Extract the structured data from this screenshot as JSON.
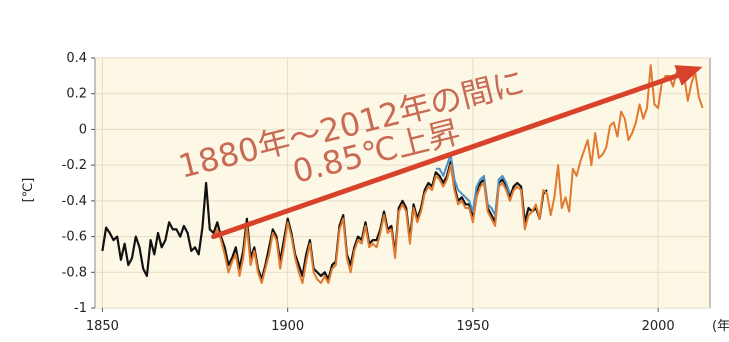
{
  "chart_data": {
    "type": "line",
    "title": "",
    "xlabel": "(年)",
    "ylabel": "[℃]",
    "xlim": [
      1848,
      2014
    ],
    "ylim": [
      -1.0,
      0.4
    ],
    "xticks": [
      "1850",
      "1900",
      "1950",
      "2000"
    ],
    "yticks": [
      "0.4",
      "0.2",
      "0",
      "-0.2",
      "-0.4",
      "-0.6",
      "-0.8",
      "-1"
    ],
    "grid": true,
    "legend": "none",
    "annotation": {
      "line1": "1880年～2012年の間に",
      "line2": "0.85℃上昇",
      "arrow_from": [
        1880,
        -0.6
      ],
      "arrow_to": [
        2012,
        0.35
      ]
    },
    "series": [
      {
        "color": "#111111",
        "x": [
          1850,
          1851,
          1852,
          1853,
          1854,
          1855,
          1856,
          1857,
          1858,
          1859,
          1860,
          1861,
          1862,
          1863,
          1864,
          1865,
          1866,
          1867,
          1868,
          1869,
          1870,
          1871,
          1872,
          1873,
          1874,
          1875,
          1876,
          1877,
          1878,
          1879,
          1880,
          1881,
          1882,
          1883,
          1884,
          1885,
          1886,
          1887,
          1888,
          1889,
          1890,
          1891,
          1892,
          1893,
          1894,
          1895,
          1896,
          1897,
          1898,
          1899,
          1900,
          1901,
          1902,
          1903,
          1904,
          1905,
          1906,
          1907,
          1908,
          1909,
          1910,
          1911,
          1912,
          1913,
          1914,
          1915,
          1916,
          1917,
          1918,
          1919,
          1920,
          1921,
          1922,
          1923,
          1924,
          1925,
          1926,
          1927,
          1928,
          1929,
          1930,
          1931,
          1932,
          1933,
          1934,
          1935,
          1936,
          1937,
          1938,
          1939,
          1940,
          1941,
          1942,
          1943,
          1944,
          1945,
          1946,
          1947,
          1948,
          1949,
          1950,
          1951,
          1952,
          1953,
          1954,
          1955,
          1956,
          1957,
          1958,
          1959,
          1960,
          1961,
          1962,
          1963,
          1964,
          1965,
          1966,
          1967,
          1968,
          1969,
          1970
        ],
        "y": [
          -0.68,
          -0.55,
          -0.58,
          -0.62,
          -0.6,
          -0.73,
          -0.64,
          -0.76,
          -0.72,
          -0.6,
          -0.66,
          -0.78,
          -0.82,
          -0.62,
          -0.7,
          -0.58,
          -0.66,
          -0.62,
          -0.52,
          -0.56,
          -0.56,
          -0.6,
          -0.54,
          -0.58,
          -0.68,
          -0.66,
          -0.7,
          -0.55,
          -0.3,
          -0.56,
          -0.58,
          -0.52,
          -0.6,
          -0.66,
          -0.76,
          -0.72,
          -0.66,
          -0.78,
          -0.68,
          -0.5,
          -0.72,
          -0.66,
          -0.78,
          -0.84,
          -0.76,
          -0.66,
          -0.56,
          -0.6,
          -0.74,
          -0.62,
          -0.5,
          -0.58,
          -0.7,
          -0.76,
          -0.82,
          -0.7,
          -0.62,
          -0.78,
          -0.8,
          -0.82,
          -0.8,
          -0.84,
          -0.76,
          -0.74,
          -0.54,
          -0.48,
          -0.7,
          -0.76,
          -0.66,
          -0.6,
          -0.62,
          -0.52,
          -0.64,
          -0.62,
          -0.62,
          -0.56,
          -0.46,
          -0.56,
          -0.54,
          -0.7,
          -0.44,
          -0.4,
          -0.44,
          -0.62,
          -0.42,
          -0.5,
          -0.44,
          -0.34,
          -0.3,
          -0.32,
          -0.24,
          -0.26,
          -0.3,
          -0.26,
          -0.18,
          -0.32,
          -0.4,
          -0.38,
          -0.42,
          -0.42,
          -0.5,
          -0.36,
          -0.3,
          -0.28,
          -0.44,
          -0.48,
          -0.52,
          -0.3,
          -0.28,
          -0.32,
          -0.38,
          -0.32,
          -0.3,
          -0.32,
          -0.52,
          -0.44,
          -0.46,
          -0.44,
          -0.5,
          -0.36,
          -0.34
        ]
      },
      {
        "color": "#4a90c8",
        "x": [
          1940,
          1941,
          1942,
          1943,
          1944,
          1945,
          1946,
          1947,
          1948,
          1949,
          1950,
          1951,
          1952,
          1953,
          1954,
          1955,
          1956,
          1957,
          1958,
          1959,
          1960
        ],
        "y": [
          -0.22,
          -0.22,
          -0.26,
          -0.2,
          -0.14,
          -0.28,
          -0.34,
          -0.36,
          -0.38,
          -0.4,
          -0.46,
          -0.32,
          -0.28,
          -0.26,
          -0.42,
          -0.44,
          -0.48,
          -0.28,
          -0.26,
          -0.3,
          -0.36
        ]
      },
      {
        "color": "#e07a30",
        "x": [
          1880,
          1881,
          1882,
          1883,
          1884,
          1885,
          1886,
          1887,
          1888,
          1889,
          1890,
          1891,
          1892,
          1893,
          1894,
          1895,
          1896,
          1897,
          1898,
          1899,
          1900,
          1901,
          1902,
          1903,
          1904,
          1905,
          1906,
          1907,
          1908,
          1909,
          1910,
          1911,
          1912,
          1913,
          1914,
          1915,
          1916,
          1917,
          1918,
          1919,
          1920,
          1921,
          1922,
          1923,
          1924,
          1925,
          1926,
          1927,
          1928,
          1929,
          1930,
          1931,
          1932,
          1933,
          1934,
          1935,
          1936,
          1937,
          1938,
          1939,
          1940,
          1941,
          1942,
          1943,
          1944,
          1945,
          1946,
          1947,
          1948,
          1949,
          1950,
          1951,
          1952,
          1953,
          1954,
          1955,
          1956,
          1957,
          1958,
          1959,
          1960,
          1961,
          1962,
          1963,
          1964,
          1965,
          1966,
          1967,
          1968,
          1969,
          1970,
          1971,
          1972,
          1973,
          1974,
          1975,
          1976,
          1977,
          1978,
          1979,
          1980,
          1981,
          1982,
          1983,
          1984,
          1985,
          1986,
          1987,
          1988,
          1989,
          1990,
          1991,
          1992,
          1993,
          1994,
          1995,
          1996,
          1997,
          1998,
          1999,
          2000,
          2001,
          2002,
          2003,
          2004,
          2005,
          2006,
          2007,
          2008,
          2009,
          2010,
          2011,
          2012
        ],
        "y": [
          -0.6,
          -0.56,
          -0.62,
          -0.7,
          -0.8,
          -0.74,
          -0.7,
          -0.82,
          -0.72,
          -0.54,
          -0.76,
          -0.68,
          -0.8,
          -0.86,
          -0.78,
          -0.7,
          -0.58,
          -0.62,
          -0.78,
          -0.66,
          -0.52,
          -0.6,
          -0.72,
          -0.8,
          -0.86,
          -0.74,
          -0.64,
          -0.8,
          -0.84,
          -0.86,
          -0.82,
          -0.86,
          -0.78,
          -0.76,
          -0.56,
          -0.5,
          -0.72,
          -0.8,
          -0.68,
          -0.62,
          -0.64,
          -0.54,
          -0.66,
          -0.64,
          -0.66,
          -0.58,
          -0.48,
          -0.58,
          -0.56,
          -0.72,
          -0.46,
          -0.42,
          -0.46,
          -0.64,
          -0.44,
          -0.52,
          -0.46,
          -0.36,
          -0.32,
          -0.34,
          -0.26,
          -0.28,
          -0.32,
          -0.28,
          -0.2,
          -0.34,
          -0.42,
          -0.4,
          -0.44,
          -0.44,
          -0.52,
          -0.38,
          -0.32,
          -0.3,
          -0.46,
          -0.5,
          -0.54,
          -0.32,
          -0.3,
          -0.34,
          -0.4,
          -0.34,
          -0.32,
          -0.34,
          -0.56,
          -0.48,
          -0.46,
          -0.42,
          -0.5,
          -0.34,
          -0.36,
          -0.48,
          -0.38,
          -0.2,
          -0.44,
          -0.38,
          -0.46,
          -0.22,
          -0.26,
          -0.18,
          -0.12,
          -0.06,
          -0.2,
          -0.02,
          -0.16,
          -0.14,
          -0.1,
          0.02,
          0.04,
          -0.04,
          0.1,
          0.06,
          -0.06,
          -0.02,
          0.04,
          0.14,
          0.06,
          0.12,
          0.36,
          0.14,
          0.12,
          0.26,
          0.3,
          0.3,
          0.24,
          0.32,
          0.28,
          0.3,
          0.16,
          0.26,
          0.32,
          0.18,
          0.12
        ]
      }
    ]
  }
}
